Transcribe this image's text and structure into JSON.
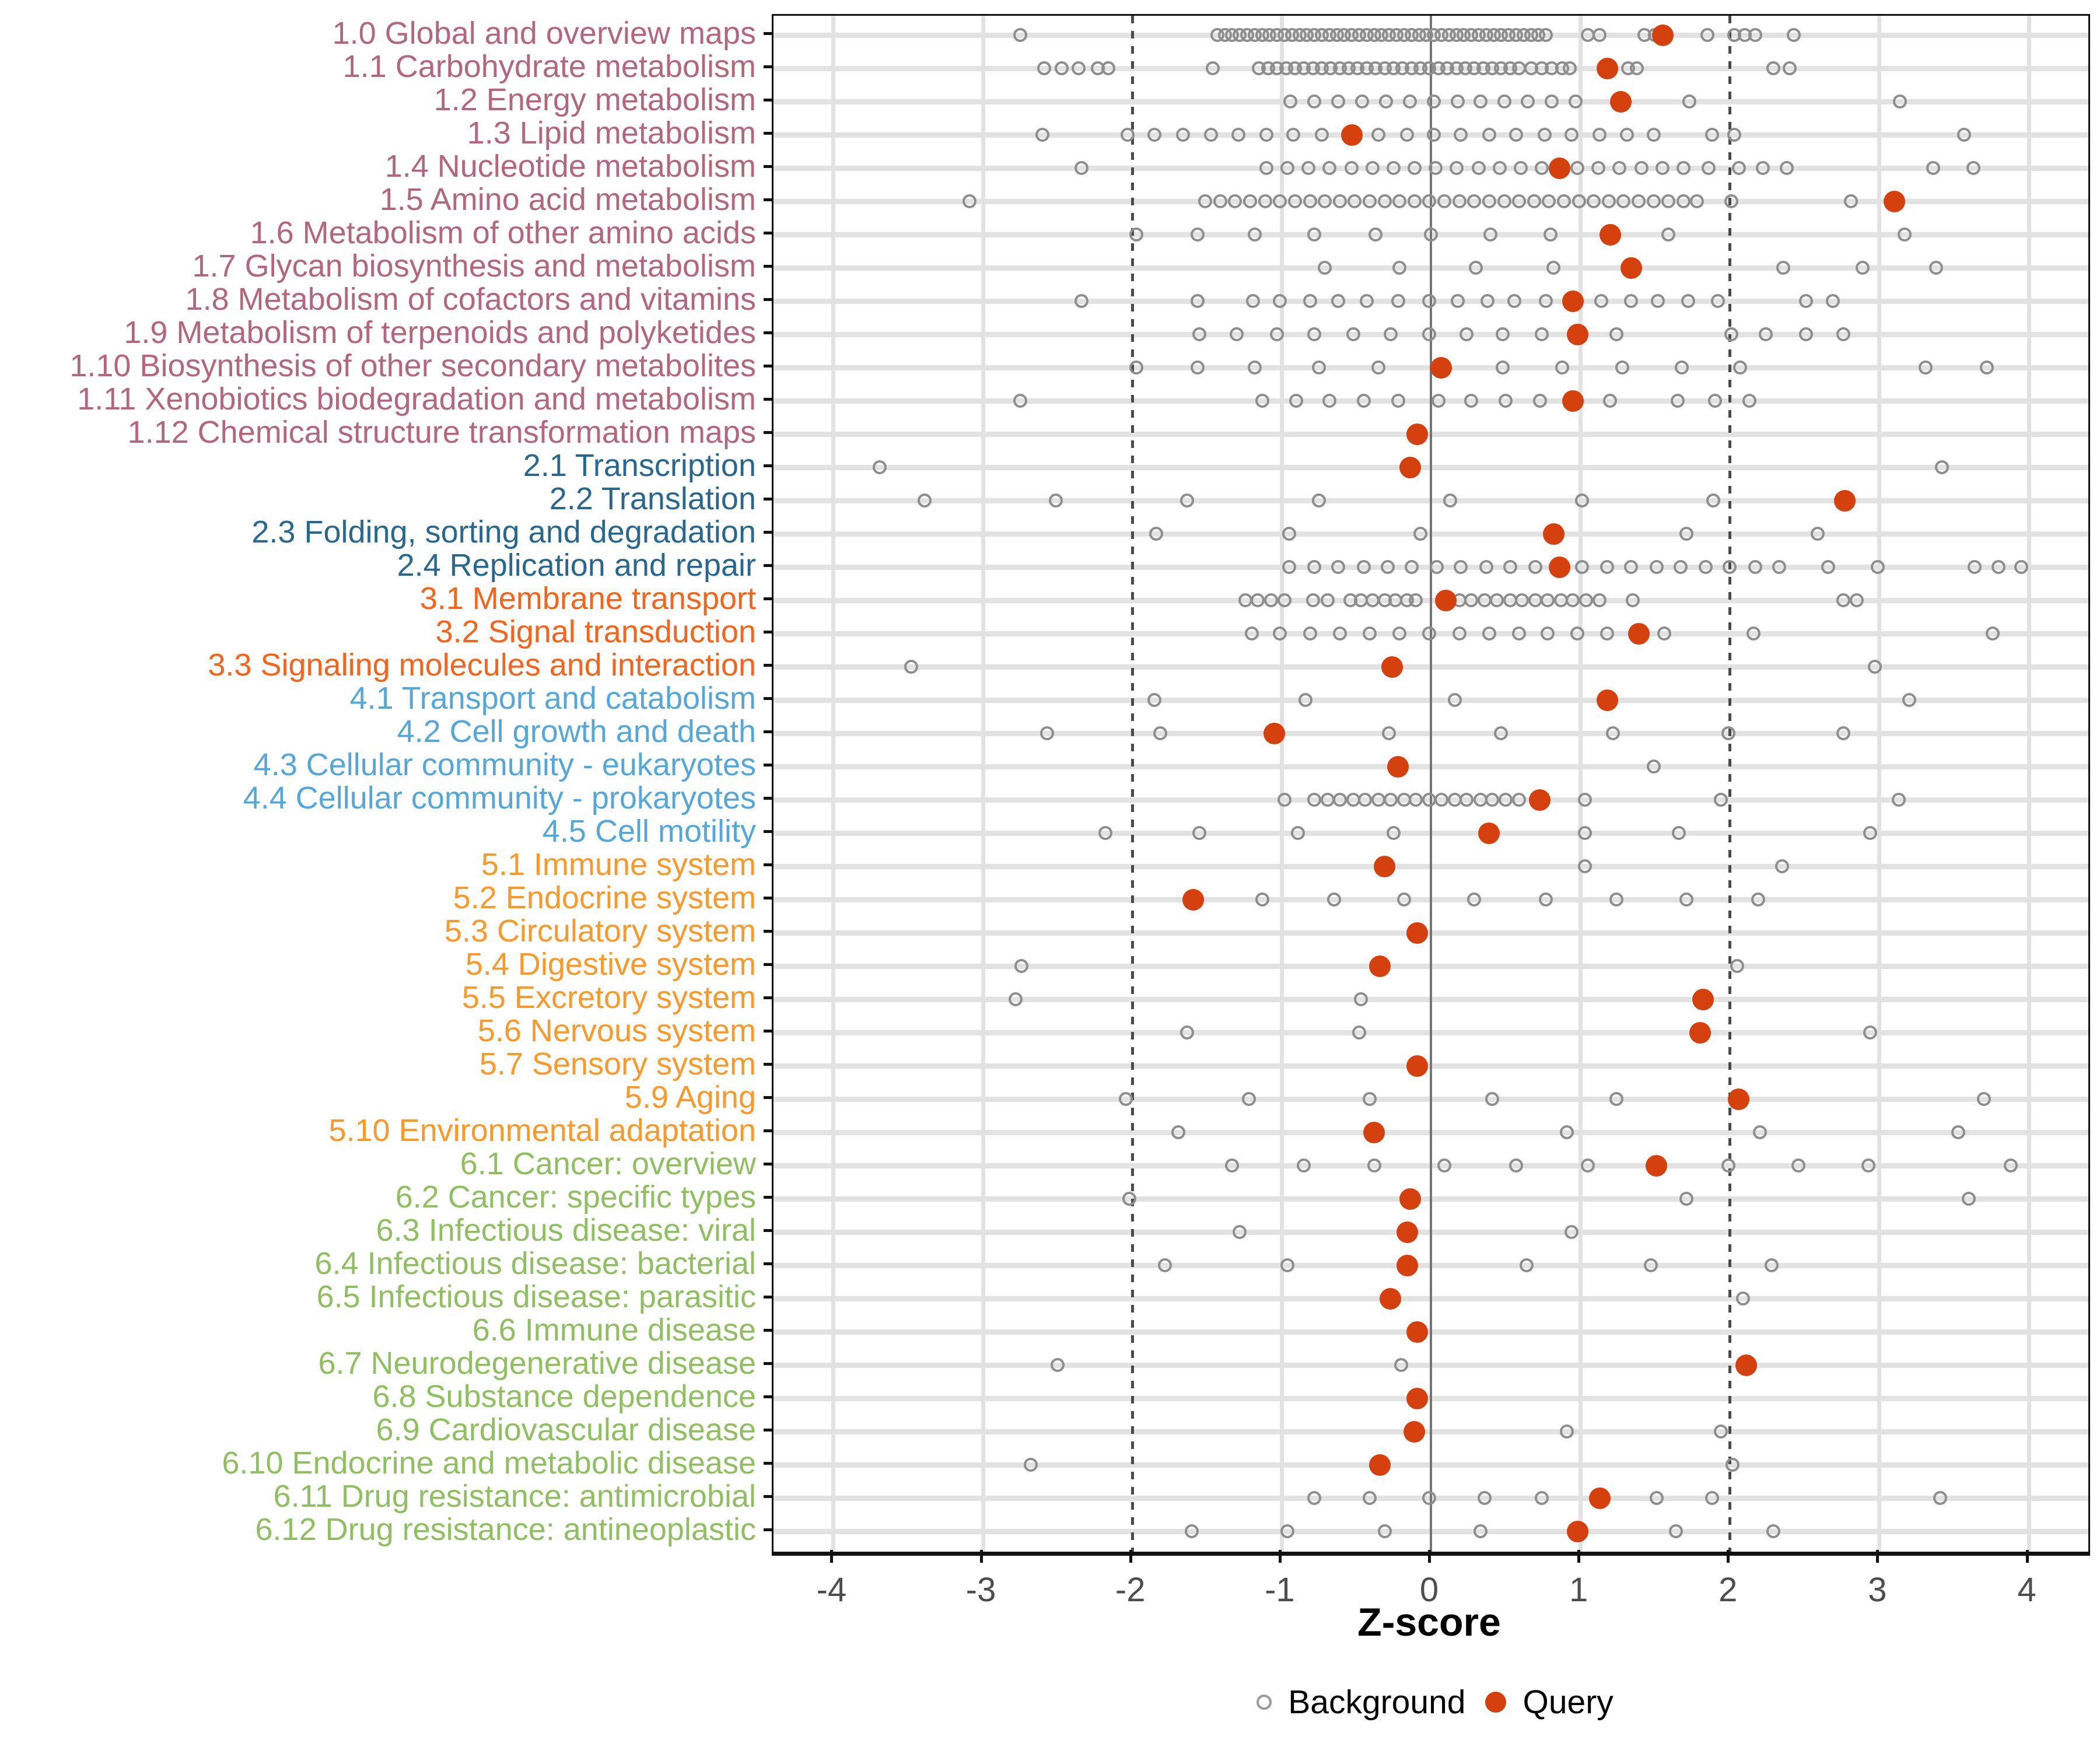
{
  "chart_data": {
    "type": "scatter",
    "title": "",
    "xlabel": "Z-score",
    "ylabel": "",
    "xlim": [
      -4.4,
      4.4
    ],
    "x_ticks": [
      -4,
      -3,
      -2,
      -1,
      0,
      1,
      2,
      3,
      4
    ],
    "grid": "major vertical light-gray, one light-gray band per category row",
    "reference_lines": {
      "solid": [
        0
      ],
      "dashed": [
        -2,
        2
      ]
    },
    "legend_position": "bottom-center",
    "legend": [
      {
        "label": "Background",
        "marker": "open-circle",
        "color": "#9a9a9a"
      },
      {
        "label": "Query",
        "marker": "filled-circle",
        "color": "#d4400e"
      }
    ],
    "group_colors": {
      "g1": "#b2677c",
      "g2": "#29678e",
      "g3": "#f3641d",
      "g4": "#55a7d9",
      "g5": "#f8992c",
      "g6": "#90bf62"
    },
    "style_colors": {
      "query": "#d4400e",
      "background_stroke": "#8e8e8e",
      "grid": "#e2e2e2",
      "zero_line": "#757575",
      "dashed_line": "#4a4a4a",
      "axis_text": "#4d4d4d",
      "tick": "#111111"
    },
    "rows": [
      {
        "id": "1.0",
        "label": "1.0 Global and overview maps",
        "group": "g1",
        "query": 1.55,
        "background": [
          -2.75,
          -1.43,
          -1.38,
          -1.33,
          -1.28,
          -1.23,
          -1.18,
          -1.13,
          -1.08,
          -1.03,
          -0.98,
          -0.93,
          -0.88,
          -0.83,
          -0.78,
          -0.73,
          -0.68,
          -0.63,
          -0.58,
          -0.53,
          -0.48,
          -0.43,
          -0.38,
          -0.33,
          -0.28,
          -0.23,
          -0.18,
          -0.13,
          -0.08,
          -0.03,
          0.02,
          0.07,
          0.12,
          0.17,
          0.22,
          0.27,
          0.32,
          0.37,
          0.42,
          0.47,
          0.52,
          0.57,
          0.62,
          0.67,
          0.72,
          0.77,
          1.05,
          1.13,
          1.43,
          1.5,
          1.85,
          2.03,
          2.1,
          2.17,
          2.43
        ]
      },
      {
        "id": "1.1",
        "label": "1.1 Carbohydrate metabolism",
        "group": "g1",
        "query": 1.18,
        "background": [
          -2.59,
          -2.47,
          -2.36,
          -2.23,
          -2.16,
          -1.46,
          -1.15,
          -1.09,
          -1.03,
          -0.97,
          -0.91,
          -0.85,
          -0.79,
          -0.73,
          -0.67,
          -0.61,
          -0.55,
          -0.49,
          -0.43,
          -0.37,
          -0.31,
          -0.25,
          -0.19,
          -0.13,
          -0.07,
          -0.01,
          0.05,
          0.11,
          0.17,
          0.23,
          0.29,
          0.35,
          0.41,
          0.47,
          0.53,
          0.59,
          0.67,
          0.74,
          0.81,
          0.88,
          0.93,
          1.32,
          1.38,
          2.29,
          2.4
        ]
      },
      {
        "id": "1.2",
        "label": "1.2 Energy metabolism",
        "group": "g1",
        "query": 1.27,
        "background": [
          -0.94,
          -0.78,
          -0.62,
          -0.46,
          -0.3,
          -0.14,
          0.02,
          0.18,
          0.33,
          0.49,
          0.65,
          0.81,
          0.97,
          1.73,
          3.14
        ]
      },
      {
        "id": "1.3",
        "label": "1.3 Lipid metabolism",
        "group": "g1",
        "query": -0.53,
        "background": [
          -2.6,
          -2.03,
          -1.85,
          -1.66,
          -1.47,
          -1.29,
          -1.1,
          -0.92,
          -0.73,
          -0.35,
          -0.16,
          0.02,
          0.2,
          0.39,
          0.57,
          0.76,
          0.94,
          1.13,
          1.31,
          1.49,
          1.88,
          2.03,
          3.57
        ]
      },
      {
        "id": "1.4",
        "label": "1.4 Nucleotide metabolism",
        "group": "g1",
        "query": 0.86,
        "background": [
          -2.34,
          -1.1,
          -0.96,
          -0.82,
          -0.68,
          -0.53,
          -0.39,
          -0.25,
          -0.11,
          0.03,
          0.17,
          0.32,
          0.46,
          0.6,
          0.74,
          0.98,
          1.12,
          1.26,
          1.41,
          1.55,
          1.69,
          1.86,
          2.06,
          2.22,
          2.38,
          3.36,
          3.63
        ]
      },
      {
        "id": "1.5",
        "label": "1.5 Amino acid metabolism",
        "group": "g1",
        "query": 3.1,
        "background": [
          -3.09,
          -1.51,
          -1.41,
          -1.31,
          -1.21,
          -1.11,
          -1.01,
          -0.91,
          -0.81,
          -0.71,
          -0.61,
          -0.51,
          -0.41,
          -0.31,
          -0.21,
          -0.11,
          -0.01,
          0.09,
          0.19,
          0.29,
          0.39,
          0.49,
          0.59,
          0.69,
          0.79,
          0.89,
          0.99,
          1.09,
          1.19,
          1.29,
          1.39,
          1.49,
          1.59,
          1.69,
          1.78,
          2.01,
          2.81
        ]
      },
      {
        "id": "1.6",
        "label": "1.6 Metabolism of other amino acids",
        "group": "g1",
        "query": 1.2,
        "background": [
          -1.97,
          -1.56,
          -1.18,
          -0.78,
          -0.37,
          0.0,
          0.4,
          0.8,
          1.59,
          3.17
        ]
      },
      {
        "id": "1.7",
        "label": "1.7 Glycan biosynthesis and metabolism",
        "group": "g1",
        "query": 1.34,
        "background": [
          -0.71,
          -0.21,
          0.3,
          0.82,
          2.36,
          2.89,
          3.38
        ]
      },
      {
        "id": "1.8",
        "label": "1.8 Metabolism of cofactors and vitamins",
        "group": "g1",
        "query": 0.95,
        "background": [
          -2.34,
          -1.56,
          -1.19,
          -1.01,
          -0.81,
          -0.62,
          -0.43,
          -0.22,
          -0.01,
          0.18,
          0.38,
          0.56,
          0.77,
          1.14,
          1.34,
          1.52,
          1.72,
          1.92,
          2.51,
          2.69
        ]
      },
      {
        "id": "1.9",
        "label": "1.9 Metabolism of terpenoids and polyketides",
        "group": "g1",
        "query": 0.98,
        "background": [
          -1.55,
          -1.3,
          -1.03,
          -0.78,
          -0.52,
          -0.27,
          -0.01,
          0.24,
          0.48,
          0.74,
          1.24,
          2.01,
          2.24,
          2.51,
          2.76
        ]
      },
      {
        "id": "1.10",
        "label": "1.10 Biosynthesis of other secondary metabolites",
        "group": "g1",
        "query": 0.07,
        "background": [
          -1.97,
          -1.56,
          -1.18,
          -0.75,
          -0.35,
          0.48,
          0.88,
          1.28,
          1.68,
          2.07,
          3.31,
          3.72
        ]
      },
      {
        "id": "1.11",
        "label": "1.11 Xenobiotics biodegradation and metabolism",
        "group": "g1",
        "query": 0.95,
        "background": [
          -2.75,
          -1.13,
          -0.9,
          -0.68,
          -0.45,
          -0.22,
          0.05,
          0.27,
          0.5,
          0.73,
          1.2,
          1.65,
          1.9,
          2.13
        ]
      },
      {
        "id": "1.12",
        "label": "1.12 Chemical structure transformation maps",
        "group": "g1",
        "query": -0.09,
        "background": []
      },
      {
        "id": "2.1",
        "label": "2.1 Transcription",
        "group": "g2",
        "query": -0.14,
        "background": [
          -3.69,
          3.42
        ]
      },
      {
        "id": "2.2",
        "label": "2.2 Translation",
        "group": "g2",
        "query": 2.77,
        "background": [
          -3.39,
          -2.51,
          -1.63,
          -0.75,
          0.13,
          1.01,
          1.89
        ]
      },
      {
        "id": "2.3",
        "label": "2.3 Folding, sorting and degradation",
        "group": "g2",
        "query": 0.82,
        "background": [
          -1.84,
          -0.95,
          -0.07,
          1.71,
          2.59
        ]
      },
      {
        "id": "2.4",
        "label": "2.4 Replication and repair",
        "group": "g2",
        "query": 0.86,
        "background": [
          -0.95,
          -0.78,
          -0.62,
          -0.45,
          -0.29,
          -0.13,
          0.04,
          0.2,
          0.37,
          0.53,
          0.7,
          1.01,
          1.18,
          1.34,
          1.51,
          1.67,
          1.84,
          2.0,
          2.17,
          2.33,
          2.66,
          2.99,
          3.64,
          3.8,
          3.95
        ]
      },
      {
        "id": "3.1",
        "label": "3.1 Membrane transport",
        "group": "g3",
        "query": 0.1,
        "background": [
          -1.24,
          -1.16,
          -1.07,
          -0.98,
          -0.79,
          -0.69,
          -0.54,
          -0.47,
          -0.39,
          -0.31,
          -0.24,
          -0.16,
          -0.1,
          0.19,
          0.27,
          0.36,
          0.44,
          0.53,
          0.61,
          0.7,
          0.78,
          0.87,
          0.95,
          1.04,
          1.13,
          1.35,
          2.76,
          2.85
        ]
      },
      {
        "id": "3.2",
        "label": "3.2 Signal transduction",
        "group": "g3",
        "query": 1.39,
        "background": [
          -1.2,
          -1.01,
          -0.81,
          -0.61,
          -0.41,
          -0.21,
          -0.01,
          0.19,
          0.39,
          0.59,
          0.78,
          0.98,
          1.18,
          1.56,
          2.16,
          3.76
        ]
      },
      {
        "id": "3.3",
        "label": "3.3 Signaling molecules and interaction",
        "group": "g3",
        "query": -0.26,
        "background": [
          -3.48,
          2.97
        ]
      },
      {
        "id": "4.1",
        "label": "4.1 Transport and catabolism",
        "group": "g4",
        "query": 1.18,
        "background": [
          -1.85,
          -0.84,
          0.16,
          3.2
        ]
      },
      {
        "id": "4.2",
        "label": "4.2 Cell growth and death",
        "group": "g4",
        "query": -1.05,
        "background": [
          -2.57,
          -1.81,
          -0.28,
          0.47,
          1.22,
          1.99,
          2.76
        ]
      },
      {
        "id": "4.3",
        "label": "4.3 Cellular community - eukaryotes",
        "group": "g4",
        "query": -0.22,
        "background": [
          1.49
        ]
      },
      {
        "id": "4.4",
        "label": "4.4 Cellular community - prokaryotes",
        "group": "g4",
        "query": 0.73,
        "background": [
          -0.98,
          -0.78,
          -0.69,
          -0.61,
          -0.52,
          -0.44,
          -0.35,
          -0.27,
          -0.18,
          -0.1,
          -0.01,
          0.07,
          0.16,
          0.24,
          0.33,
          0.41,
          0.5,
          0.59,
          1.03,
          1.94,
          3.13
        ]
      },
      {
        "id": "4.5",
        "label": "4.5 Cell motility",
        "group": "g4",
        "query": 0.39,
        "background": [
          -2.18,
          -1.55,
          -0.89,
          -0.25,
          1.03,
          1.66,
          2.94
        ]
      },
      {
        "id": "5.1",
        "label": "5.1 Immune system",
        "group": "g5",
        "query": -0.31,
        "background": [
          1.03,
          2.35
        ]
      },
      {
        "id": "5.2",
        "label": "5.2 Endocrine system",
        "group": "g5",
        "query": -1.59,
        "background": [
          -1.13,
          -0.65,
          -0.18,
          0.29,
          0.77,
          1.24,
          1.71,
          2.19
        ]
      },
      {
        "id": "5.3",
        "label": "5.3 Circulatory system",
        "group": "g5",
        "query": -0.09,
        "background": []
      },
      {
        "id": "5.4",
        "label": "5.4 Digestive system",
        "group": "g5",
        "query": -0.34,
        "background": [
          -2.74,
          2.05
        ]
      },
      {
        "id": "5.5",
        "label": "5.5 Excretory system",
        "group": "g5",
        "query": 1.82,
        "background": [
          -2.78,
          -0.47
        ]
      },
      {
        "id": "5.6",
        "label": "5.6 Nervous system",
        "group": "g5",
        "query": 1.8,
        "background": [
          -1.63,
          -0.48,
          2.94
        ]
      },
      {
        "id": "5.7",
        "label": "5.7 Sensory system",
        "group": "g5",
        "query": -0.09,
        "background": []
      },
      {
        "id": "5.9",
        "label": "5.9 Aging",
        "group": "g5",
        "query": 2.06,
        "background": [
          -2.04,
          -1.22,
          -0.41,
          0.41,
          1.24,
          3.7
        ]
      },
      {
        "id": "5.10",
        "label": "5.10 Environmental adaptation",
        "group": "g5",
        "query": -0.38,
        "background": [
          -1.69,
          0.91,
          2.2,
          3.53
        ]
      },
      {
        "id": "6.1",
        "label": "6.1 Cancer: overview",
        "group": "g6",
        "query": 1.51,
        "background": [
          -1.33,
          -0.85,
          -0.38,
          0.09,
          0.57,
          1.05,
          1.99,
          2.46,
          2.93,
          3.88
        ]
      },
      {
        "id": "6.2",
        "label": "6.2 Cancer: specific types",
        "group": "g6",
        "query": -0.14,
        "background": [
          -2.02,
          1.71,
          3.6
        ]
      },
      {
        "id": "6.3",
        "label": "6.3 Infectious disease: viral",
        "group": "g6",
        "query": -0.16,
        "background": [
          -1.28,
          0.94
        ]
      },
      {
        "id": "6.4",
        "label": "6.4 Infectious disease: bacterial",
        "group": "g6",
        "query": -0.16,
        "background": [
          -1.78,
          -0.96,
          0.64,
          1.47,
          2.28
        ]
      },
      {
        "id": "6.5",
        "label": "6.5 Infectious disease: parasitic",
        "group": "g6",
        "query": -0.27,
        "background": [
          2.09
        ]
      },
      {
        "id": "6.6",
        "label": "6.6 Immune disease",
        "group": "g6",
        "query": -0.09,
        "background": []
      },
      {
        "id": "6.7",
        "label": "6.7 Neurodegenerative disease",
        "group": "g6",
        "query": 2.11,
        "background": [
          -2.5,
          -0.2
        ]
      },
      {
        "id": "6.8",
        "label": "6.8 Substance dependence",
        "group": "g6",
        "query": -0.09,
        "background": []
      },
      {
        "id": "6.9",
        "label": "6.9 Cardiovascular disease",
        "group": "g6",
        "query": -0.11,
        "background": [
          0.91,
          1.94
        ]
      },
      {
        "id": "6.10",
        "label": "6.10 Endocrine and metabolic disease",
        "group": "g6",
        "query": -0.34,
        "background": [
          -2.68,
          2.02
        ]
      },
      {
        "id": "6.11",
        "label": "6.11 Drug resistance: antimicrobial",
        "group": "g6",
        "query": 1.13,
        "background": [
          -0.78,
          -0.41,
          -0.01,
          0.36,
          0.74,
          1.51,
          1.88,
          3.41
        ]
      },
      {
        "id": "6.12",
        "label": "6.12 Drug resistance: antineoplastic",
        "group": "g6",
        "query": 0.98,
        "background": [
          -1.6,
          -0.96,
          -0.31,
          0.33,
          1.64,
          2.29
        ]
      }
    ]
  }
}
